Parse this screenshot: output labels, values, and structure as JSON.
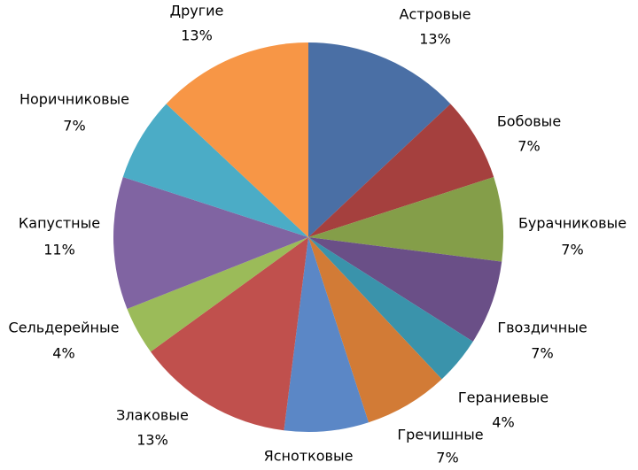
{
  "chart_data": {
    "type": "pie",
    "categories": [
      "Астровые",
      "Бобовые",
      "Бурачниковые",
      "Гвоздичные",
      "Гераниевые",
      "Гречишные",
      "Яснотковые",
      "Злаковые",
      "Сельдерейные",
      "Капустные",
      "Норичниковые",
      "Другие"
    ],
    "values": [
      13,
      7,
      7,
      7,
      4,
      7,
      7,
      13,
      4,
      11,
      7,
      13
    ],
    "value_labels": [
      "13%",
      "7%",
      "7%",
      "7%",
      "4%",
      "7%",
      null,
      "13%",
      "4%",
      "11%",
      "7%",
      "13%"
    ],
    "colors": [
      "#4a6fa5",
      "#a5403e",
      "#849e49",
      "#6a4f87",
      "#3a93ab",
      "#d27b36",
      "#5b87c6",
      "#c0504d",
      "#9bbb59",
      "#8064a2",
      "#4bacc6",
      "#f79646"
    ]
  }
}
